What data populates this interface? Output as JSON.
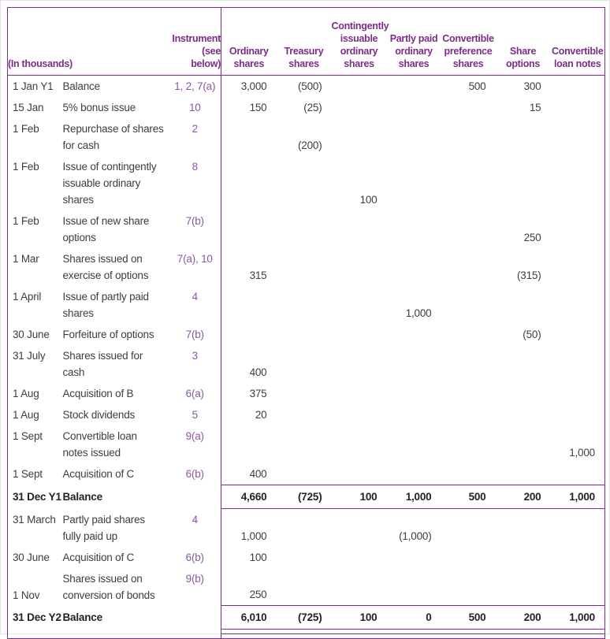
{
  "table": {
    "unit_label": "(In thousands)",
    "instrument_header": "Instrument\n(see\nbelow)",
    "column_keys": [
      "ordinary-shares",
      "treasury-shares",
      "contingently-issuable-ordinary-shares",
      "partly-paid-ordinary-shares",
      "convertible-preference-shares",
      "share-options",
      "convertible-loan-notes"
    ],
    "columns": [
      "Ordinary\nshares",
      "Treasury\nshares",
      "Contingently\nissuable\nordinary\nshares",
      "Partly paid\nordinary\nshares",
      "Convertible\npreference\nshares",
      "Share\noptions",
      "Convertible\nloan notes"
    ],
    "rows": [
      {
        "date": "1 Jan Y1",
        "desc": "Balance",
        "instrument": "1, 2, 7(a)",
        "values": [
          "3,000",
          "(500)",
          "",
          "",
          "500",
          "300",
          ""
        ]
      },
      {
        "date": "15 Jan",
        "desc": "5% bonus issue",
        "instrument": "10",
        "values": [
          "150",
          "(25)",
          "",
          "",
          "",
          "15",
          ""
        ]
      },
      {
        "date": "1 Feb",
        "desc": "Repurchase of shares\nfor cash",
        "instrument": "2",
        "values": [
          "",
          "(200)",
          "",
          "",
          "",
          "",
          ""
        ]
      },
      {
        "date": "1 Feb",
        "desc": "Issue of contingently\nissuable ordinary\nshares",
        "instrument": "8",
        "values": [
          "",
          "",
          "100",
          "",
          "",
          "",
          ""
        ]
      },
      {
        "date": "1 Feb",
        "desc": "Issue of new share\noptions",
        "instrument": "7(b)",
        "values": [
          "",
          "",
          "",
          "",
          "",
          "250",
          ""
        ]
      },
      {
        "date": "1 Mar",
        "desc": "Shares issued on\nexercise of options",
        "instrument": "7(a), 10",
        "values": [
          "315",
          "",
          "",
          "",
          "",
          "(315)",
          ""
        ]
      },
      {
        "date": "1 April",
        "desc": "Issue of partly paid\nshares",
        "instrument": "4",
        "values": [
          "",
          "",
          "",
          "1,000",
          "",
          "",
          ""
        ]
      },
      {
        "date": "30 June",
        "desc": "Forfeiture of options",
        "instrument": "7(b)",
        "values": [
          "",
          "",
          "",
          "",
          "",
          "(50)",
          ""
        ]
      },
      {
        "date": "31 July",
        "desc": "Shares issued for\ncash",
        "instrument": "3",
        "values": [
          "400",
          "",
          "",
          "",
          "",
          "",
          ""
        ]
      },
      {
        "date": "1 Aug",
        "desc": "Acquisition of B",
        "instrument": "6(a)",
        "values": [
          "375",
          "",
          "",
          "",
          "",
          "",
          ""
        ]
      },
      {
        "date": "1 Aug",
        "desc": "Stock dividends",
        "instrument": "5",
        "values": [
          "20",
          "",
          "",
          "",
          "",
          "",
          ""
        ]
      },
      {
        "date": "1 Sept",
        "desc": "Convertible loan\nnotes issued",
        "instrument": "9(a)",
        "values": [
          "",
          "",
          "",
          "",
          "",
          "",
          "1,000"
        ]
      },
      {
        "date": "1 Sept",
        "desc": "Acquisition of C",
        "instrument": "6(b)",
        "values": [
          "400",
          "",
          "",
          "",
          "",
          "",
          ""
        ]
      },
      {
        "date": "31 Dec Y1",
        "desc": "Balance",
        "instrument": "",
        "values": [
          "4,660",
          "(725)",
          "100",
          "1,000",
          "500",
          "200",
          "1,000"
        ],
        "balance": true
      },
      {
        "date": "31 March",
        "desc": "Partly paid shares\nfully paid up",
        "instrument": "4",
        "values": [
          "1,000",
          "",
          "",
          "(1,000)",
          "",
          "",
          ""
        ]
      },
      {
        "date": "30 June",
        "desc": "Acquisition of C",
        "instrument": "6(b)",
        "values": [
          "100",
          "",
          "",
          "",
          "",
          "",
          ""
        ]
      },
      {
        "date": "1 Nov",
        "desc": "Shares issued on\nconversion of bonds",
        "instrument": "9(b)",
        "values": [
          "250",
          "",
          "",
          "",
          "",
          "",
          ""
        ],
        "date_bottom": true
      },
      {
        "date": "31 Dec Y2",
        "desc": "Balance",
        "instrument": "",
        "values": [
          "6,010",
          "(725)",
          "100",
          "0",
          "500",
          "200",
          "1,000"
        ],
        "balance": true,
        "double_underline": true
      }
    ]
  },
  "colors": {
    "accent_purple": "#7B2E87",
    "instrument_purple": "#8A58A0",
    "body_text": "#3E3E41"
  }
}
